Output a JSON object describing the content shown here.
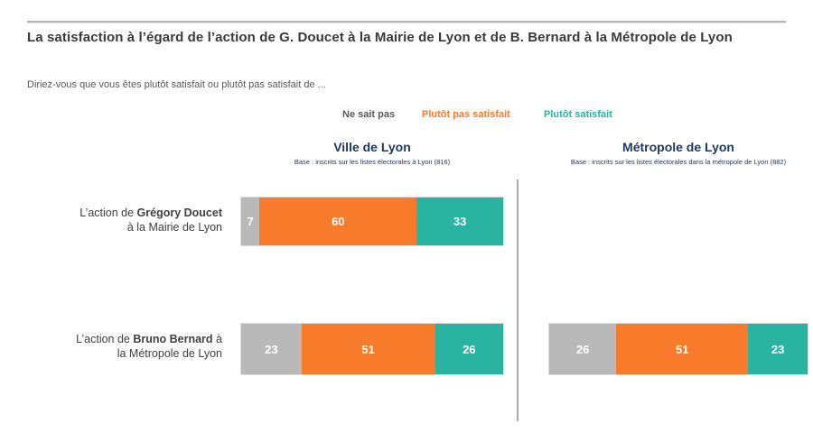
{
  "page": {
    "title": "La satisfaction à l’égard de l’action de G. Doucet à la Mairie de Lyon et de B. Bernard à la Métropole de Lyon",
    "subtitle": "Diriez-vous que vous êtes plutôt satisfait ou plutôt pas satisfait de ..."
  },
  "colors": {
    "ne_sait_pas": "#b9b9b9",
    "pas_satisfait": "#f87b2b",
    "satisfait": "#29b4a2",
    "header_blue": "#1f3864",
    "title_text": "#3a3a3a",
    "body_text": "#595959",
    "divider": "#ababab"
  },
  "legend": [
    {
      "label": "Ne sait pas",
      "color": "#595959"
    },
    {
      "label": "Plutôt pas satisfait",
      "color": "#f87b2b"
    },
    {
      "label": "Plutôt satisfait",
      "color": "#29b4a2"
    }
  ],
  "series_keys": [
    {
      "key": "ne_sait_pas",
      "name": "Ne sait pas",
      "color": "#b9b9b9"
    },
    {
      "key": "pas_satisfait",
      "name": "Plutôt pas satisfait",
      "color": "#f87b2b"
    },
    {
      "key": "satisfait",
      "name": "Plutôt satisfait",
      "color": "#29b4a2"
    }
  ],
  "columns": [
    {
      "title": "Ville de Lyon",
      "base": "Base : inscrits sur les listes électorales à Lyon (816)"
    },
    {
      "title": "Métropole de Lyon",
      "base": "Base : inscrits sur les listes électorales dans la métropole de Lyon (882)"
    }
  ],
  "rows": [
    {
      "label_prefix": "L’action de ",
      "label_bold": "Grégory Doucet",
      "label_suffix": "",
      "label_line2": "à la Mairie de Lyon",
      "ville": {
        "ne_sait_pas": 7,
        "pas_satisfait": 60,
        "satisfait": 33
      },
      "metropole": null
    },
    {
      "label_prefix": "L’action de ",
      "label_bold": "Bruno Bernard",
      "label_suffix": " à",
      "label_line2": "la Métropole de Lyon",
      "ville": {
        "ne_sait_pas": 23,
        "pas_satisfait": 51,
        "satisfait": 26
      },
      "metropole": {
        "ne_sait_pas": 26,
        "pas_satisfait": 51,
        "satisfait": 23
      }
    }
  ],
  "chart_data": {
    "type": "bar",
    "orientation": "horizontal-stacked",
    "xlim": [
      0,
      100
    ],
    "grid": false,
    "legend_position": "top",
    "title": "La satisfaction à l’égard de l’action de G. Doucet à la Mairie de Lyon et de B. Bernard à la Métropole de Lyon",
    "subtitle": "Diriez-vous que vous êtes plutôt satisfait ou plutôt pas satisfait de ...",
    "panels": [
      {
        "title": "Ville de Lyon",
        "annotation": "Base : inscrits sur les listes électorales à Lyon (816)",
        "categories": [
          "L’action de Grégory Doucet à la Mairie de Lyon",
          "L’action de Bruno Bernard à la Métropole de Lyon"
        ],
        "series": [
          {
            "name": "Ne sait pas",
            "color": "#b9b9b9",
            "values": [
              7,
              23
            ]
          },
          {
            "name": "Plutôt pas satisfait",
            "color": "#f87b2b",
            "values": [
              60,
              51
            ]
          },
          {
            "name": "Plutôt satisfait",
            "color": "#29b4a2",
            "values": [
              33,
              26
            ]
          }
        ]
      },
      {
        "title": "Métropole de Lyon",
        "annotation": "Base : inscrits sur les listes électorales dans la métropole de Lyon (882)",
        "categories": [
          "L’action de Bruno Bernard à la Métropole de Lyon"
        ],
        "series": [
          {
            "name": "Ne sait pas",
            "color": "#b9b9b9",
            "values": [
              26
            ]
          },
          {
            "name": "Plutôt pas satisfait",
            "color": "#f87b2b",
            "values": [
              51
            ]
          },
          {
            "name": "Plutôt satisfait",
            "color": "#29b4a2",
            "values": [
              23
            ]
          }
        ]
      }
    ]
  }
}
